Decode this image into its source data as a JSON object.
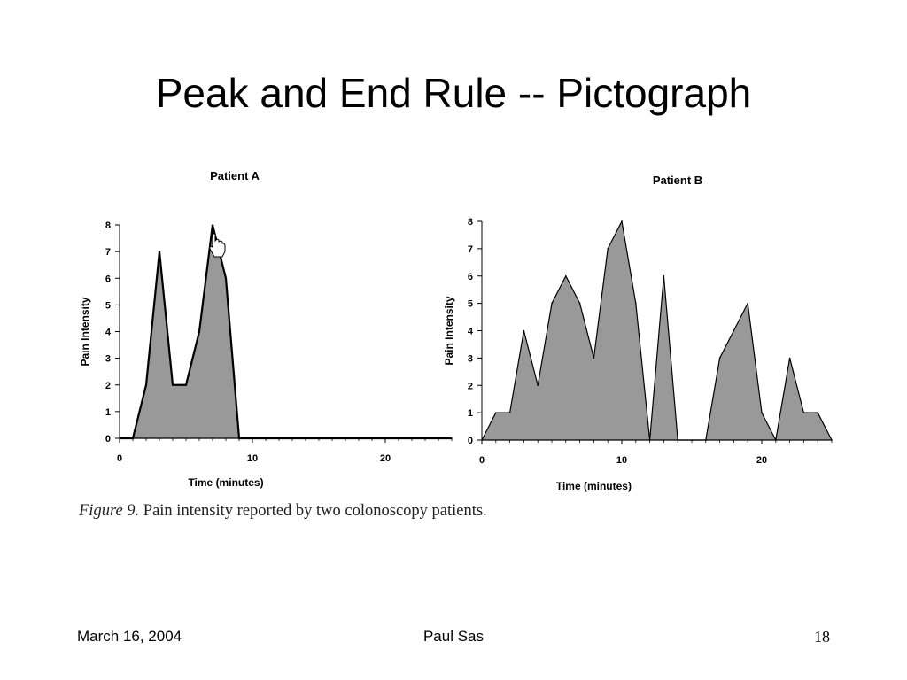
{
  "slide": {
    "title": "Peak and End Rule -- Pictograph",
    "caption_figure": "Figure 9.",
    "caption_text": " Pain intensity reported by two colonoscopy patients."
  },
  "footer": {
    "date": "March 16, 2004",
    "author": "Paul Sas",
    "page": "18"
  },
  "colors": {
    "fill": "#999999",
    "stroke": "#000000"
  },
  "chart_data": [
    {
      "type": "area",
      "title": "Patient A",
      "xlabel": "Time (minutes)",
      "ylabel": "Pain Intensity",
      "xlim": [
        0,
        25
      ],
      "ylim": [
        0,
        8
      ],
      "xticks": [
        0,
        10,
        20
      ],
      "yticks": [
        0,
        1,
        2,
        3,
        4,
        5,
        6,
        7,
        8
      ],
      "x": [
        0,
        1,
        2,
        3,
        4,
        5,
        6,
        7,
        8,
        9,
        25
      ],
      "y": [
        0,
        0,
        2,
        7,
        2,
        2,
        4,
        8,
        6,
        0,
        0
      ],
      "annotation": "hand-cursor-at-peak"
    },
    {
      "type": "area",
      "title": "Patient B",
      "xlabel": "Time (minutes)",
      "ylabel": "Pain Intensity",
      "xlim": [
        0,
        25
      ],
      "ylim": [
        0,
        8
      ],
      "xticks": [
        0,
        10,
        20
      ],
      "yticks": [
        0,
        1,
        2,
        3,
        4,
        5,
        6,
        7,
        8
      ],
      "x": [
        0,
        1,
        2,
        3,
        4,
        5,
        6,
        7,
        8,
        9,
        10,
        11,
        12,
        13,
        14,
        15,
        16,
        17,
        18,
        19,
        20,
        21,
        22,
        23,
        24,
        25
      ],
      "y": [
        0,
        1,
        1,
        4,
        2,
        5,
        6,
        5,
        3,
        7,
        8,
        5,
        0,
        6,
        0,
        0,
        0,
        3,
        4,
        5,
        1,
        0,
        3,
        1,
        1,
        0
      ]
    }
  ]
}
